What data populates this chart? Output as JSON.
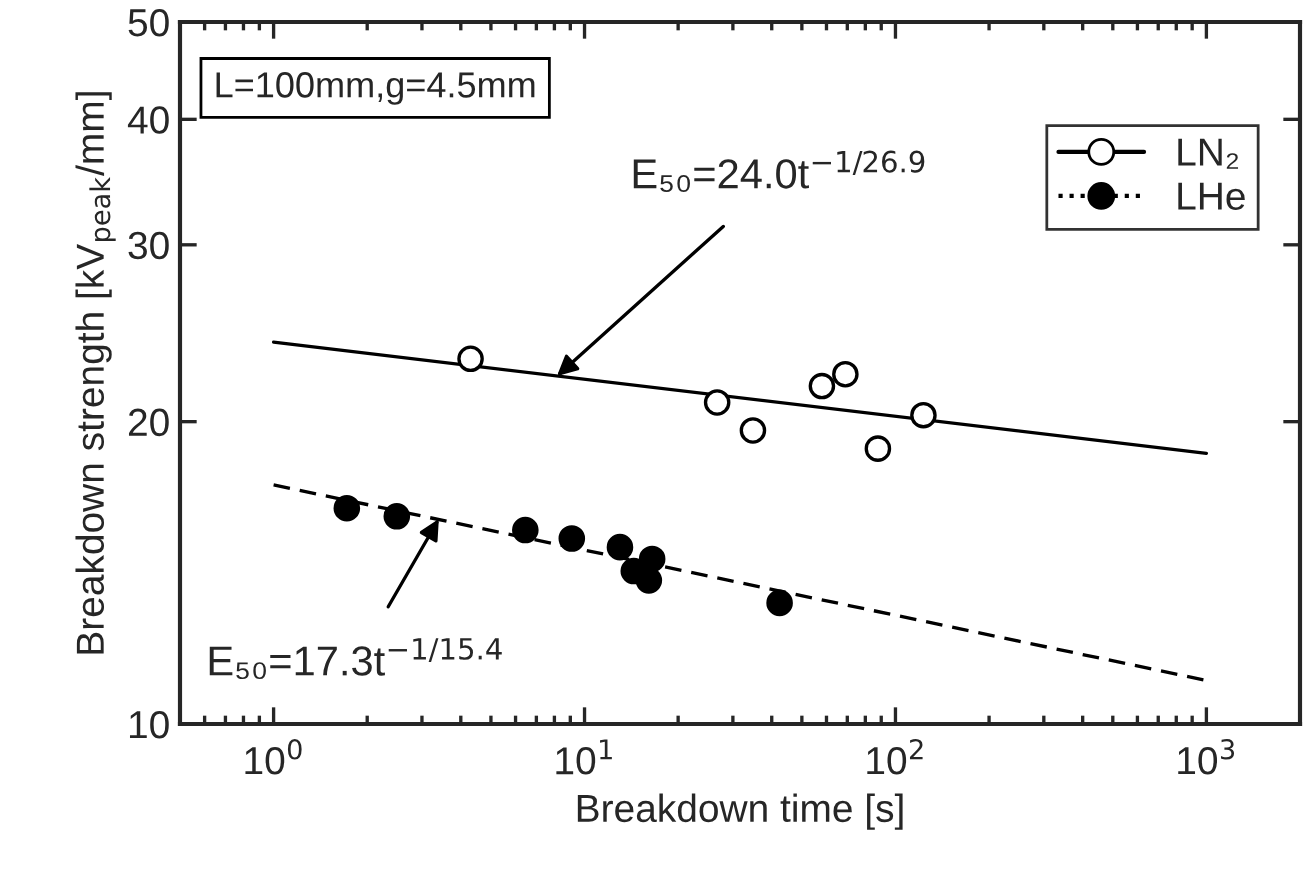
{
  "chart_data": {
    "type": "scatter",
    "xlabel": "Breakdown time [s]",
    "ylabel": "Breakdown strength [kV$_{peak}$/mm]",
    "log": "xy",
    "xlim": [
      0.5,
      2000
    ],
    "ylim": [
      10,
      50
    ],
    "xticks": [
      {
        "value": 1,
        "label": "10$^{0}$"
      },
      {
        "value": 10,
        "label": "10$^{1}$"
      },
      {
        "value": 100,
        "label": "10$^{2}$"
      },
      {
        "value": 1000,
        "label": "10$^{3}$"
      }
    ],
    "yticks": [
      10,
      20,
      30,
      40,
      50
    ],
    "grid": false,
    "legend": "top right",
    "series": [
      {
        "name": "LN₂",
        "marker": "circle",
        "color": "#ffffff",
        "x": [
          4.3,
          26.7,
          34.8,
          58,
          69,
          87.8,
          123
        ],
        "values": [
          23.1,
          20.9,
          19.6,
          21.7,
          22.3,
          18.8,
          20.3
        ]
      },
      {
        "name": "LHe",
        "marker": "circle",
        "color": "#000000",
        "x": [
          1.72,
          2.49,
          6.45,
          9.1,
          13.0,
          16.5,
          14.4,
          16.1,
          42.4
        ],
        "values": [
          16.4,
          16.1,
          15.6,
          15.3,
          15.0,
          14.6,
          14.2,
          13.9,
          13.2
        ]
      },
      {
        "type": "line",
        "color": "#000000",
        "line_style": "solid",
        "x": [
          1,
          1000
        ],
        "values": [
          24.0,
          18.6
        ]
      },
      {
        "type": "line",
        "color": "#000000",
        "line_style": "dashed",
        "x": [
          1,
          1000
        ],
        "values": [
          17.3,
          11.05
        ]
      }
    ],
    "annotations": [
      "L=100mm,g=4.5mm",
      {
        "text": "E₅₀=24.0t$^{−1/26.9}$",
        "x": 8.15,
        "y": 22.2
      },
      {
        "text": "E₅₀=17.3t$^{−1/15.4}$",
        "x": 3.4,
        "y": 16.0
      }
    ]
  }
}
